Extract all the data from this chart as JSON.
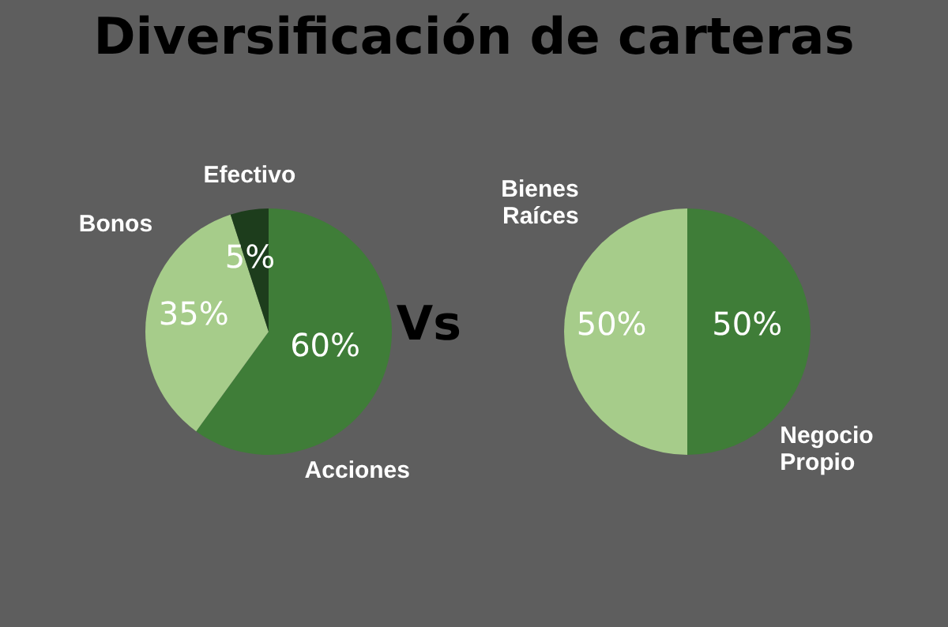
{
  "chart_data": [
    {
      "type": "pie",
      "title": "Diversificación de carteras",
      "categories": [
        "Acciones",
        "Bonos",
        "Efectivo"
      ],
      "values": [
        60,
        35,
        5
      ],
      "colors": [
        "#3f7d38",
        "#a6cc8a",
        "#1d3d1c"
      ],
      "value_labels": [
        "60%",
        "35%",
        "5%"
      ],
      "annotations": [
        "Vs"
      ]
    },
    {
      "type": "pie",
      "categories": [
        "Negocio Propio",
        "Bienes Raíces"
      ],
      "values": [
        50,
        50
      ],
      "colors": [
        "#3f7d38",
        "#a6cc8a"
      ],
      "value_labels": [
        "50%",
        "50%"
      ]
    }
  ]
}
